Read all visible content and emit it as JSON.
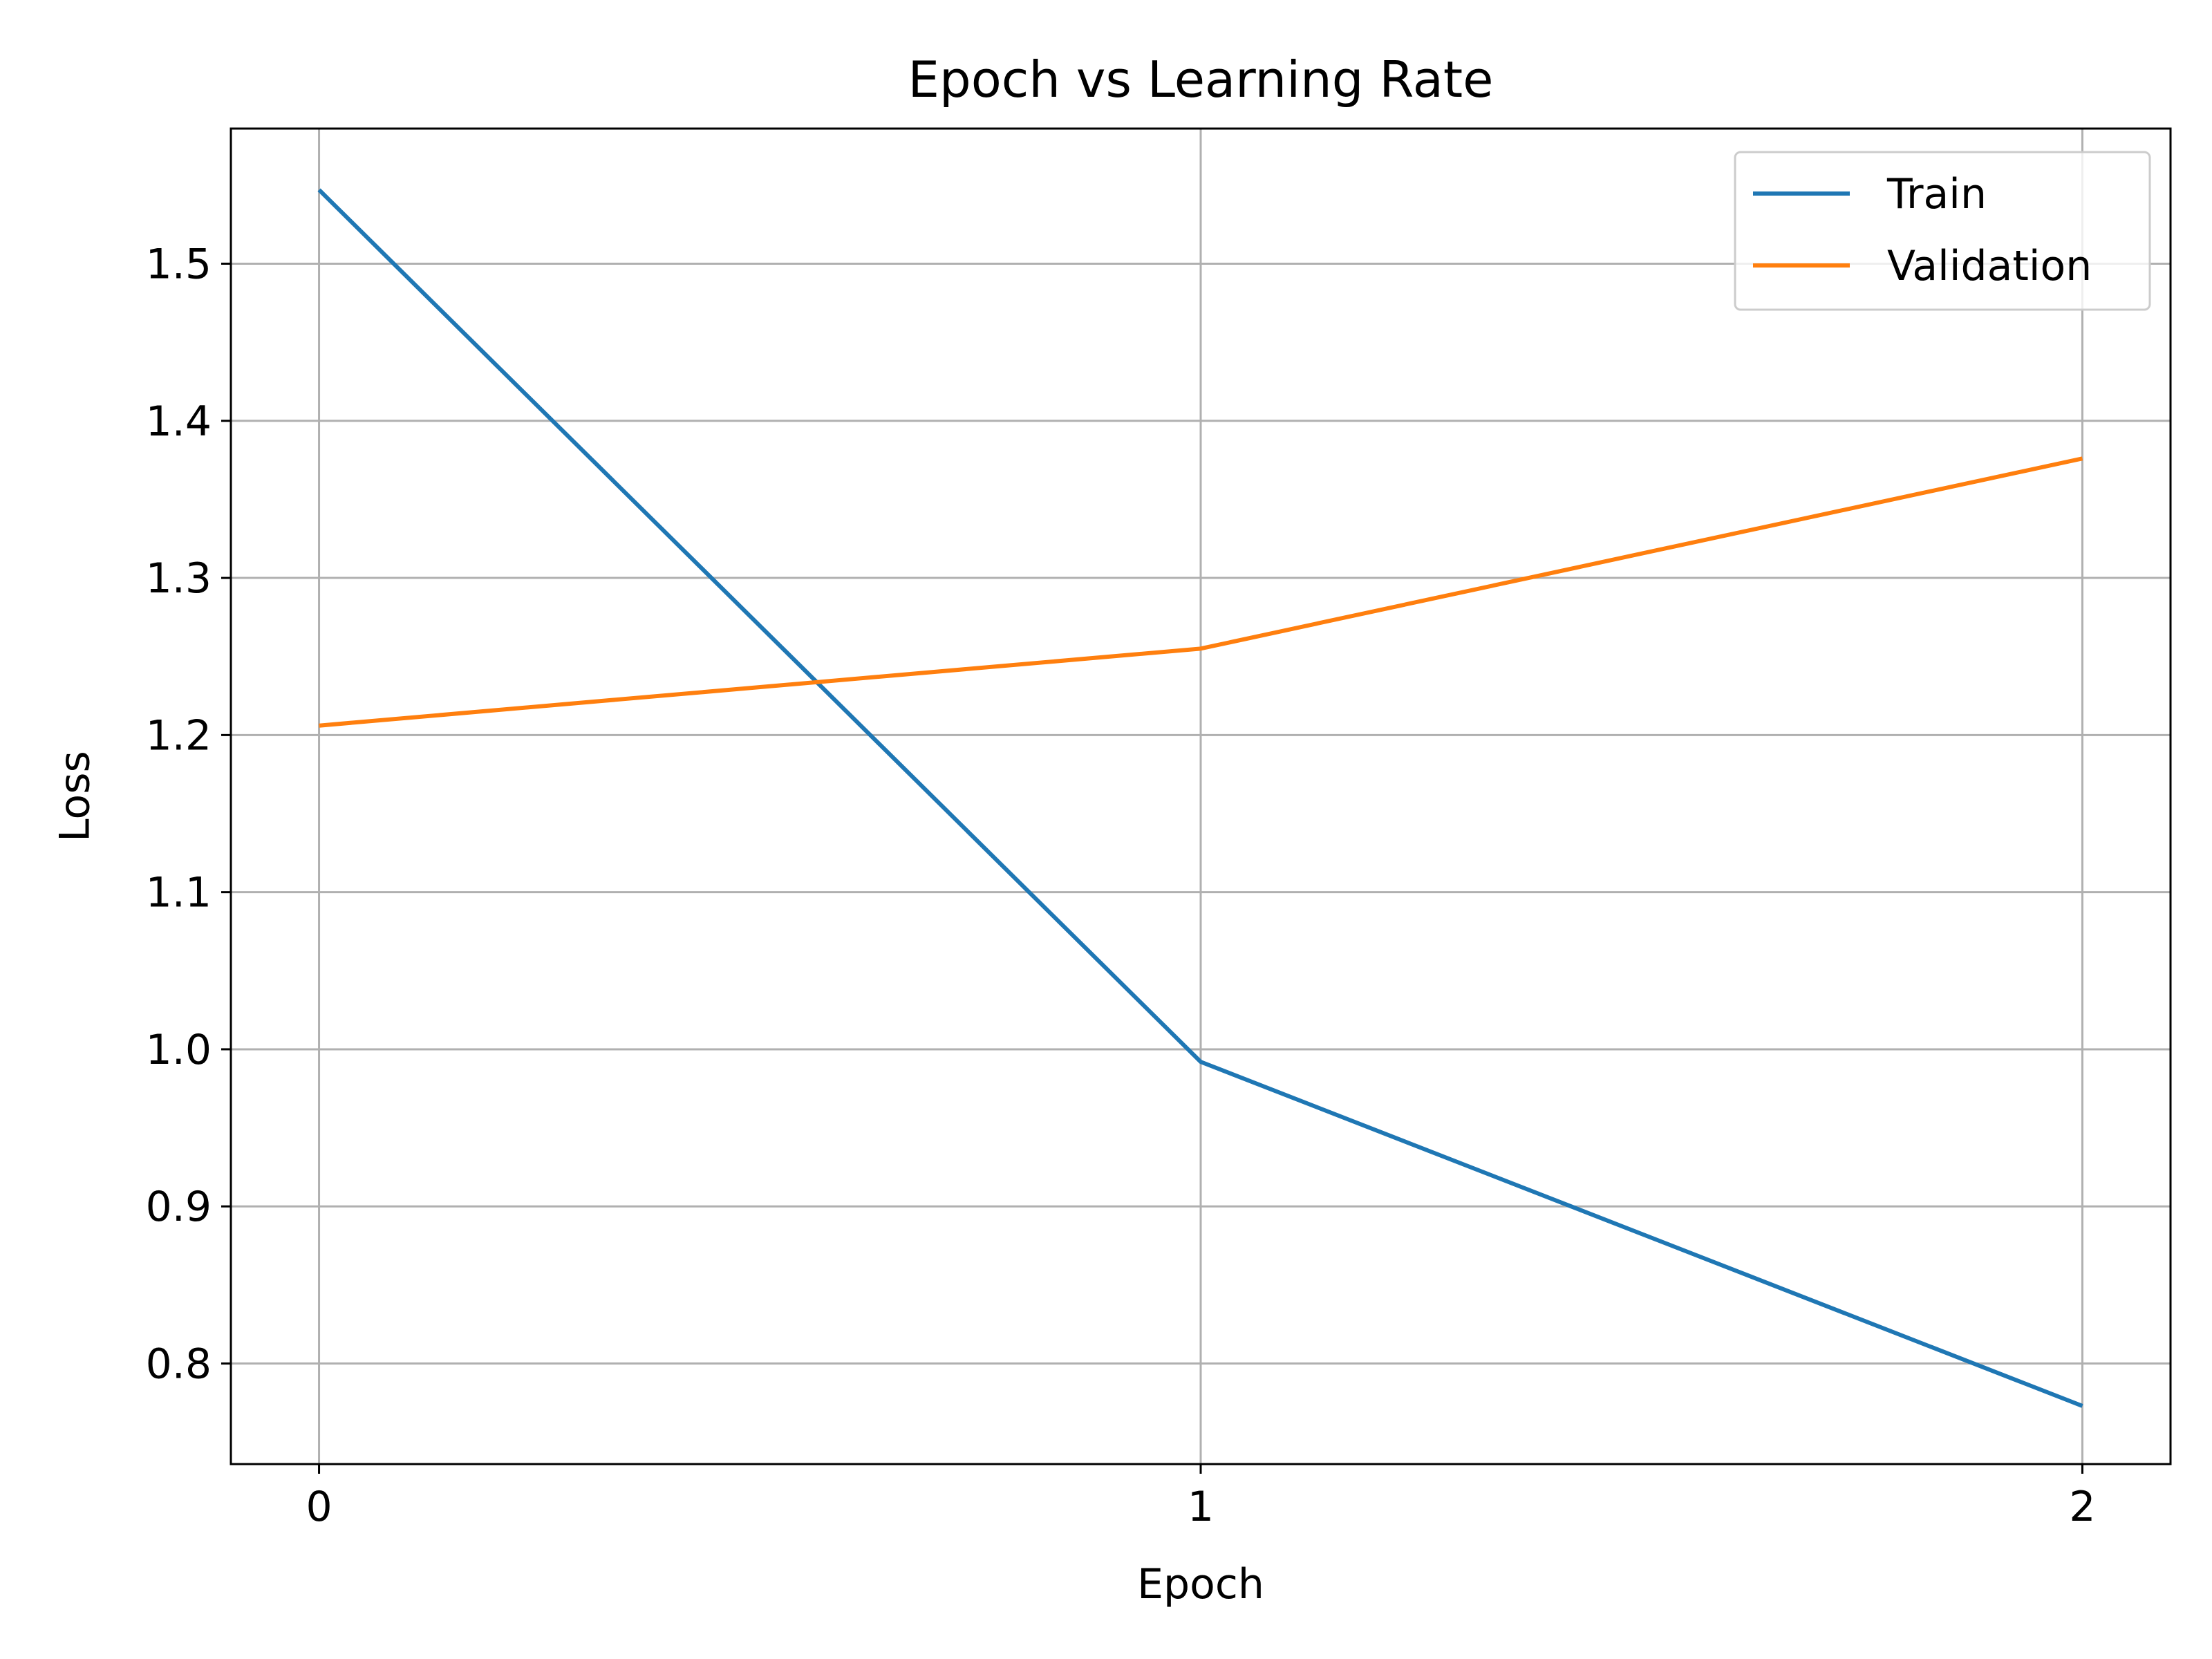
{
  "chart_data": {
    "type": "line",
    "title": "Epoch vs Learning Rate",
    "xlabel": "Epoch",
    "ylabel": "Loss",
    "x": [
      0,
      1,
      2
    ],
    "xlim": [
      -0.1,
      2.1
    ],
    "ylim": [
      0.736,
      1.586
    ],
    "x_ticks": [
      "0",
      "1",
      "2"
    ],
    "y_ticks": [
      "0.8",
      "0.9",
      "1.0",
      "1.1",
      "1.2",
      "1.3",
      "1.4",
      "1.5"
    ],
    "grid": true,
    "legend_position": "top-right",
    "series": [
      {
        "name": "Train",
        "color": "#1f77b4",
        "values": [
          1.547,
          0.992,
          0.773
        ]
      },
      {
        "name": "Validation",
        "color": "#ff7f0e",
        "values": [
          1.206,
          1.255,
          1.376
        ]
      }
    ]
  }
}
